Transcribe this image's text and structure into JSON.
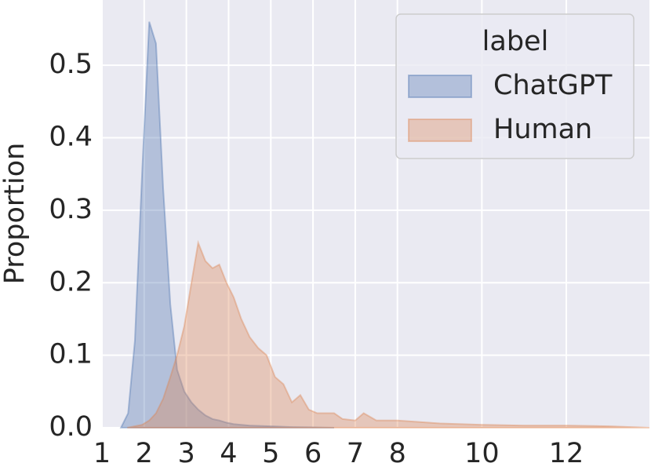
{
  "chart_data": {
    "type": "area",
    "ylabel": "Proportion",
    "legend_title": "label",
    "legend": "upper right",
    "grid": true,
    "xlim": [
      1,
      13.97
    ],
    "ylim": [
      0,
      0.59
    ],
    "xticks": [
      1,
      2,
      3,
      4,
      5,
      6,
      7,
      8,
      10,
      12
    ],
    "yticks": [
      {
        "value": 0,
        "label": "0.0"
      },
      0.1,
      0.2,
      0.3,
      0.4,
      0.5
    ],
    "series": [
      {
        "name": "ChatGPT",
        "color": "#4c72b0",
        "x": [
          1.45,
          1.62,
          1.78,
          1.95,
          2.12,
          2.28,
          2.45,
          2.62,
          2.78,
          2.95,
          3.12,
          3.28,
          3.45,
          3.62,
          3.78,
          3.95,
          4.12,
          4.5,
          5,
          5.5,
          6,
          6.5
        ],
        "values": [
          0,
          0.02,
          0.12,
          0.35,
          0.56,
          0.53,
          0.33,
          0.17,
          0.08,
          0.05,
          0.035,
          0.025,
          0.017,
          0.012,
          0.01,
          0.007,
          0.005,
          0.003,
          0.002,
          0.001,
          0.0005,
          0
        ]
      },
      {
        "name": "Human",
        "color": "#dd8452",
        "x": [
          1.6,
          1.95,
          2.12,
          2.28,
          2.45,
          2.62,
          2.78,
          2.95,
          3.12,
          3.28,
          3.45,
          3.62,
          3.78,
          3.95,
          4.12,
          4.3,
          4.5,
          4.7,
          4.9,
          5.1,
          5.3,
          5.5,
          5.7,
          5.9,
          6.1,
          6.5,
          6.7,
          7,
          7.2,
          7.5,
          8,
          8.5,
          9,
          9.5,
          10,
          11,
          12,
          13,
          13.97
        ],
        "values": [
          0,
          0.004,
          0.01,
          0.02,
          0.04,
          0.07,
          0.1,
          0.14,
          0.2,
          0.255,
          0.23,
          0.22,
          0.225,
          0.2,
          0.18,
          0.15,
          0.125,
          0.11,
          0.1,
          0.07,
          0.06,
          0.035,
          0.045,
          0.025,
          0.02,
          0.02,
          0.012,
          0.01,
          0.02,
          0.01,
          0.01,
          0.008,
          0.006,
          0.005,
          0.004,
          0.003,
          0.003,
          0.002,
          0
        ]
      }
    ]
  }
}
